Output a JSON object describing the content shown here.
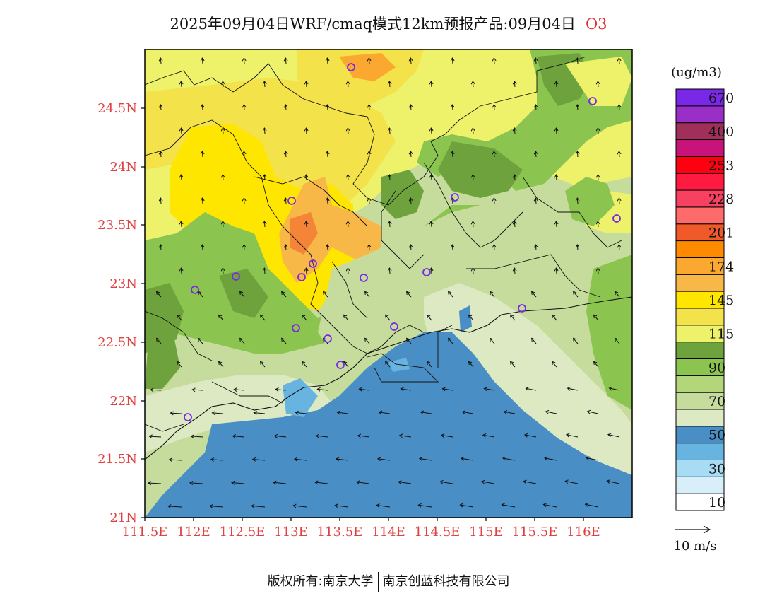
{
  "title": {
    "text": "2025年09月04日WRF/cmaq模式12km预报产品:09月04日",
    "pollutant": "O3"
  },
  "map": {
    "lon_labels": [
      "111.5E",
      "112E",
      "112.5E",
      "113E",
      "113.5E",
      "114E",
      "114.5E",
      "115E",
      "115.5E",
      "116E"
    ],
    "lat_labels": [
      "24.5N",
      "24N",
      "23.5N",
      "23N",
      "22.5N",
      "22N",
      "21.5N",
      "21N"
    ],
    "tick_label_color": "#e04040"
  },
  "legend": {
    "unit": "(ug/m3)",
    "colors": [
      "#ffffff",
      "#d8eef8",
      "#a8dcf4",
      "#68b4e0",
      "#4a8ec6",
      "#dde9c2",
      "#c6dc9c",
      "#b4d67a",
      "#8cc450",
      "#6ea23c",
      "#eef26a",
      "#f4e24a",
      "#ffe600",
      "#f8b848",
      "#faa830",
      "#ff8a00",
      "#f05a2a",
      "#ff6a6a",
      "#f84060",
      "#ff1a40",
      "#ff0010",
      "#c8147a",
      "#a0305a",
      "#9a2fc8",
      "#7a28e8"
    ],
    "labels": [
      "10",
      "30",
      "50",
      "70",
      "90",
      "115",
      "145",
      "174",
      "201",
      "228",
      "253",
      "400",
      "670"
    ]
  },
  "wind_scale": {
    "label": "10 m/s"
  },
  "footer": {
    "left": "版权所有:南京大学",
    "right": "南京创蓝科技有限公司"
  }
}
